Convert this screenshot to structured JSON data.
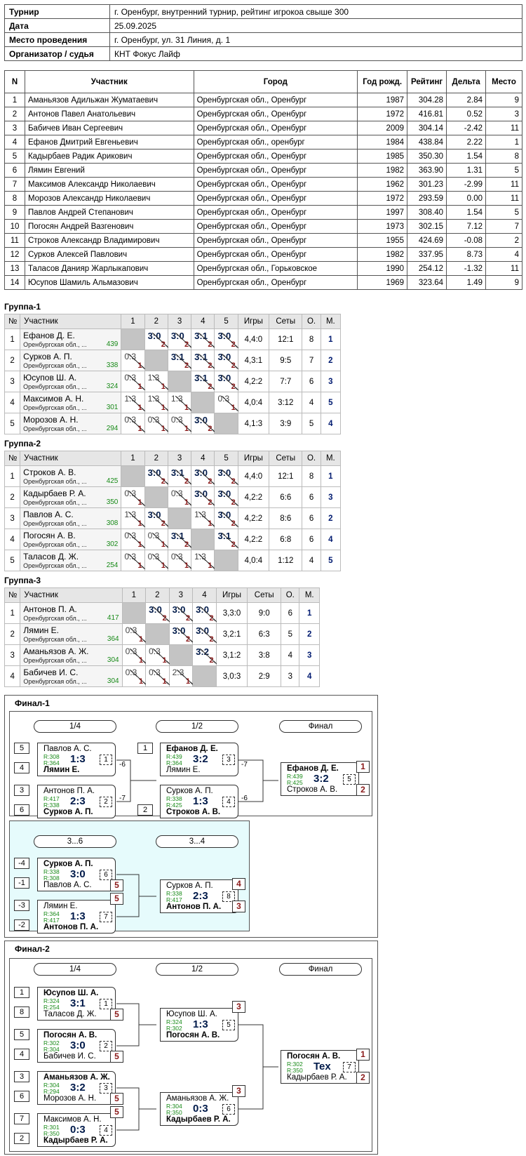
{
  "info": [
    {
      "k": "Турнир",
      "v": "г. Оренбург, внутренний турнир, рейтинг игрокоа свыше 300"
    },
    {
      "k": "Дата",
      "v": "25.09.2025"
    },
    {
      "k": "Место проведения",
      "v": "г. Оренбург, ул. 31 Линия, д. 1"
    },
    {
      "k": "Организатор / судья",
      "v": "КНТ Фокус Лайф"
    }
  ],
  "participants_header": [
    "N",
    "Участник",
    "Город",
    "Год рожд.",
    "Рейтинг",
    "Дельта",
    "Место"
  ],
  "participants": [
    [
      "1",
      "Аманьязов Адильжан Жуматаевич",
      "Оренбургская обл., Оренбург",
      "1987",
      "304.28",
      "2.84",
      "9"
    ],
    [
      "2",
      "Антонов Павел Анатольевич",
      "Оренбургская обл., Оренбург",
      "1972",
      "416.81",
      "0.52",
      "3"
    ],
    [
      "3",
      "Бабичев Иван Сергеевич",
      "Оренбургская обл., Оренбург",
      "2009",
      "304.14",
      "-2.42",
      "11"
    ],
    [
      "4",
      "Ефанов Дмитрий Евгеньевич",
      "Оренбургская обл., оренбург",
      "1984",
      "438.84",
      "2.22",
      "1"
    ],
    [
      "5",
      "Кадырбаев Радик Арикович",
      "Оренбургская обл., Оренбург",
      "1985",
      "350.30",
      "1.54",
      "8"
    ],
    [
      "6",
      "Лямин Евгений",
      "Оренбургская обл., Оренбург",
      "1982",
      "363.90",
      "1.31",
      "5"
    ],
    [
      "7",
      "Максимов Александр Николаевич",
      "Оренбургская обл., Оренбург",
      "1962",
      "301.23",
      "-2.99",
      "11"
    ],
    [
      "8",
      "Морозов Александр Николаевич",
      "Оренбургская обл., Оренбург",
      "1972",
      "293.59",
      "0.00",
      "11"
    ],
    [
      "9",
      "Павлов Андрей Степанович",
      "Оренбургская обл., Оренбург",
      "1997",
      "308.40",
      "1.54",
      "5"
    ],
    [
      "10",
      "Погосян Андрей Вазгенович",
      "Оренбургская обл., Оренбург",
      "1973",
      "302.15",
      "7.12",
      "7"
    ],
    [
      "11",
      "Строков Александр Владимирович",
      "Оренбургская обл., Оренбург",
      "1955",
      "424.69",
      "-0.08",
      "2"
    ],
    [
      "12",
      "Сурков Алексей Павлович",
      "Оренбургская обл., Оренбург",
      "1982",
      "337.95",
      "8.73",
      "4"
    ],
    [
      "13",
      "Таласов Данияр Жарлыкапович",
      "Оренбургская обл., Горьковское",
      "1990",
      "254.12",
      "-1.32",
      "11"
    ],
    [
      "14",
      "Юсупов Шамиль Альмазович",
      "Оренбургская обл., Оренбург",
      "1969",
      "323.64",
      "1.49",
      "9"
    ]
  ],
  "group_header": {
    "num": "№",
    "name": "Участник",
    "games": "Игры",
    "sets": "Сеты",
    "pts": "О.",
    "place": "М."
  },
  "groups": [
    {
      "title": "Группа-1",
      "players": [
        {
          "n": "1",
          "name": "Ефанов Д. Е.",
          "region": "Оренбургская обл., ...",
          "rating": "439",
          "cells": [
            null,
            [
              "3:0",
              "2"
            ],
            [
              "3:0",
              "2"
            ],
            [
              "3:1",
              "2"
            ],
            [
              "3:0",
              "2"
            ]
          ],
          "games": "4,4:0",
          "sets": "12:1",
          "pts": "8",
          "place": "1"
        },
        {
          "n": "2",
          "name": "Сурков А. П.",
          "region": "Оренбургская обл., ...",
          "rating": "338",
          "cells": [
            [
              "0:3",
              "1"
            ],
            null,
            [
              "3:1",
              "2"
            ],
            [
              "3:1",
              "2"
            ],
            [
              "3:0",
              "2"
            ]
          ],
          "games": "4,3:1",
          "sets": "9:5",
          "pts": "7",
          "place": "2"
        },
        {
          "n": "3",
          "name": "Юсупов Ш. А.",
          "region": "Оренбургская обл., ...",
          "rating": "324",
          "cells": [
            [
              "0:3",
              "1"
            ],
            [
              "1:3",
              "1"
            ],
            null,
            [
              "3:1",
              "2"
            ],
            [
              "3:0",
              "2"
            ]
          ],
          "games": "4,2:2",
          "sets": "7:7",
          "pts": "6",
          "place": "3"
        },
        {
          "n": "4",
          "name": "Максимов А. Н.",
          "region": "Оренбургская обл., ...",
          "rating": "301",
          "cells": [
            [
              "1:3",
              "1"
            ],
            [
              "1:3",
              "1"
            ],
            [
              "1:3",
              "1"
            ],
            null,
            [
              "0:3",
              "1"
            ]
          ],
          "games": "4,0:4",
          "sets": "3:12",
          "pts": "4",
          "place": "5"
        },
        {
          "n": "5",
          "name": "Морозов А. Н.",
          "region": "Оренбургская обл., ...",
          "rating": "294",
          "cells": [
            [
              "0:3",
              "1"
            ],
            [
              "0:3",
              "1"
            ],
            [
              "0:3",
              "1"
            ],
            [
              "3:0",
              "2"
            ],
            null
          ],
          "games": "4,1:3",
          "sets": "3:9",
          "pts": "5",
          "place": "4"
        }
      ]
    },
    {
      "title": "Группа-2",
      "players": [
        {
          "n": "1",
          "name": "Строков А. В.",
          "region": "Оренбургская обл., ...",
          "rating": "425",
          "cells": [
            null,
            [
              "3:0",
              "2"
            ],
            [
              "3:1",
              "2"
            ],
            [
              "3:0",
              "2"
            ],
            [
              "3:0",
              "2"
            ]
          ],
          "games": "4,4:0",
          "sets": "12:1",
          "pts": "8",
          "place": "1"
        },
        {
          "n": "2",
          "name": "Кадырбаев Р. А.",
          "region": "Оренбургская обл., ...",
          "rating": "350",
          "cells": [
            [
              "0:3",
              "1"
            ],
            null,
            [
              "0:3",
              "1"
            ],
            [
              "3:0",
              "2"
            ],
            [
              "3:0",
              "2"
            ]
          ],
          "games": "4,2:2",
          "sets": "6:6",
          "pts": "6",
          "place": "3"
        },
        {
          "n": "3",
          "name": "Павлов А. С.",
          "region": "Оренбургская обл., ...",
          "rating": "308",
          "cells": [
            [
              "1:3",
              "1"
            ],
            [
              "3:0",
              "2"
            ],
            null,
            [
              "1:3",
              "1"
            ],
            [
              "3:0",
              "2"
            ]
          ],
          "games": "4,2:2",
          "sets": "8:6",
          "pts": "6",
          "place": "2"
        },
        {
          "n": "4",
          "name": "Погосян А. В.",
          "region": "Оренбургская обл., ...",
          "rating": "302",
          "cells": [
            [
              "0:3",
              "1"
            ],
            [
              "0:3",
              "1"
            ],
            [
              "3:1",
              "2"
            ],
            null,
            [
              "3:1",
              "2"
            ]
          ],
          "games": "4,2:2",
          "sets": "6:8",
          "pts": "6",
          "place": "4"
        },
        {
          "n": "5",
          "name": "Таласов Д. Ж.",
          "region": "Оренбургская обл., ...",
          "rating": "254",
          "cells": [
            [
              "0:3",
              "1"
            ],
            [
              "0:3",
              "1"
            ],
            [
              "0:3",
              "1"
            ],
            [
              "1:3",
              "1"
            ],
            null
          ],
          "games": "4,0:4",
          "sets": "1:12",
          "pts": "4",
          "place": "5"
        }
      ]
    },
    {
      "title": "Группа-3",
      "players": [
        {
          "n": "1",
          "name": "Антонов П. А.",
          "region": "Оренбургская обл., ...",
          "rating": "417",
          "cells": [
            null,
            [
              "3:0",
              "2"
            ],
            [
              "3:0",
              "2"
            ],
            [
              "3:0",
              "2"
            ]
          ],
          "games": "3,3:0",
          "sets": "9:0",
          "pts": "6",
          "place": "1"
        },
        {
          "n": "2",
          "name": "Лямин Е.",
          "region": "Оренбургская обл., ...",
          "rating": "364",
          "cells": [
            [
              "0:3",
              "1"
            ],
            null,
            [
              "3:0",
              "2"
            ],
            [
              "3:0",
              "2"
            ]
          ],
          "games": "3,2:1",
          "sets": "6:3",
          "pts": "5",
          "place": "2"
        },
        {
          "n": "3",
          "name": "Аманьязов А. Ж.",
          "region": "Оренбургская обл., ...",
          "rating": "304",
          "cells": [
            [
              "0:3",
              "1"
            ],
            [
              "0:3",
              "1"
            ],
            null,
            [
              "3:2",
              "2"
            ]
          ],
          "games": "3,1:2",
          "sets": "3:8",
          "pts": "4",
          "place": "3"
        },
        {
          "n": "4",
          "name": "Бабичев И. С.",
          "region": "Оренбургская обл., ...",
          "rating": "304",
          "cells": [
            [
              "0:3",
              "1"
            ],
            [
              "0:3",
              "1"
            ],
            [
              "2:3",
              "1"
            ],
            null
          ],
          "games": "3,0:3",
          "sets": "2:9",
          "pts": "3",
          "place": "4"
        }
      ]
    }
  ],
  "final1": {
    "title": "Финал-1",
    "headers": {
      "q": "1/4",
      "s": "1/2",
      "f": "Финал",
      "c36": "3...6",
      "c34": "3...4"
    },
    "seeds": {
      "a": "5",
      "b": "4",
      "c": "3",
      "d": "6",
      "e": "1",
      "f": "2",
      "g": "-4",
      "h": "-1",
      "i": "-3",
      "j": "-2"
    },
    "m1": {
      "p1": "Павлов А. С.",
      "r1": "R:308",
      "r2": "R:364",
      "p2": "Лямин Е.",
      "score": "1:3",
      "num": "1",
      "drop": "-6"
    },
    "m2": {
      "p1": "Антонов П. А.",
      "r1": "R:417",
      "r2": "R:338",
      "p2": "Сурков А. П.",
      "score": "2:3",
      "num": "2",
      "drop": "-7"
    },
    "m3": {
      "p1": "Ефанов Д. Е.",
      "r1": "R:439",
      "r2": "R:364",
      "p2": "Лямин Е.",
      "score": "3:2",
      "num": "3",
      "drop": "-7"
    },
    "m4": {
      "p1": "Сурков А. П.",
      "r1": "R:338",
      "r2": "R:425",
      "p2": "Строков А. В.",
      "score": "1:3",
      "num": "4",
      "drop": "-6"
    },
    "m5": {
      "p1": "Ефанов Д. Е.",
      "r1": "R:439",
      "r2": "R:425",
      "p2": "Строков А. В.",
      "score": "3:2",
      "num": "5",
      "w": "1",
      "l": "2"
    },
    "m6": {
      "p1": "Сурков А. П.",
      "r1": "R:338",
      "r2": "R:308",
      "p2": "Павлов А. С.",
      "score": "3:0",
      "num": "6",
      "l": "5"
    },
    "m7": {
      "p1": "Лямин Е.",
      "r1": "R:364",
      "r2": "R:417",
      "p2": "Антонов П. А.",
      "score": "1:3",
      "num": "7",
      "l": "5"
    },
    "m8": {
      "p1": "Сурков А. П.",
      "r1": "R:338",
      "r2": "R:417",
      "p2": "Антонов П. А.",
      "score": "2:3",
      "num": "8",
      "w": "4",
      "l": "3"
    }
  },
  "final2": {
    "title": "Финал-2",
    "headers": {
      "q": "1/4",
      "s": "1/2",
      "f": "Финал"
    },
    "seeds": {
      "a": "1",
      "b": "8",
      "c": "5",
      "d": "4",
      "e": "3",
      "f": "6",
      "g": "7",
      "h": "2"
    },
    "m1": {
      "p1": "Юсупов Ш. А.",
      "r1": "R:324",
      "r2": "R:254",
      "p2": "Таласов Д. Ж.",
      "score": "3:1",
      "num": "1",
      "l": "5"
    },
    "m2": {
      "p1": "Погосян А. В.",
      "r1": "R:302",
      "r2": "R:304",
      "p2": "Бабичев И. С.",
      "score": "3:0",
      "num": "2",
      "l": "5"
    },
    "m3": {
      "p1": "Аманьязов А. Ж.",
      "r1": "R:304",
      "r2": "R:294",
      "p2": "Морозов А. Н.",
      "score": "3:2",
      "num": "3",
      "l": "5"
    },
    "m4": {
      "p1": "Максимов А. Н.",
      "r1": "R:301",
      "r2": "R:350",
      "p2": "Кадырбаев Р. А.",
      "score": "0:3",
      "num": "4",
      "l": "5"
    },
    "m5": {
      "p1": "Юсупов Ш. А.",
      "r1": "R:324",
      "r2": "R:302",
      "p2": "Погосян А. В.",
      "score": "1:3",
      "num": "5",
      "l": "3"
    },
    "m6": {
      "p1": "Аманьязов А. Ж.",
      "r1": "R:304",
      "r2": "R:350",
      "p2": "Кадырбаев Р. А.",
      "score": "0:3",
      "num": "6",
      "l": "3"
    },
    "m7": {
      "p1": "Погосян А. В.",
      "r1": "R:302",
      "r2": "R:350",
      "p2": "Кадырбаев Р. А.",
      "score": "Tex",
      "num": "7",
      "w": "1",
      "l": "2"
    }
  }
}
